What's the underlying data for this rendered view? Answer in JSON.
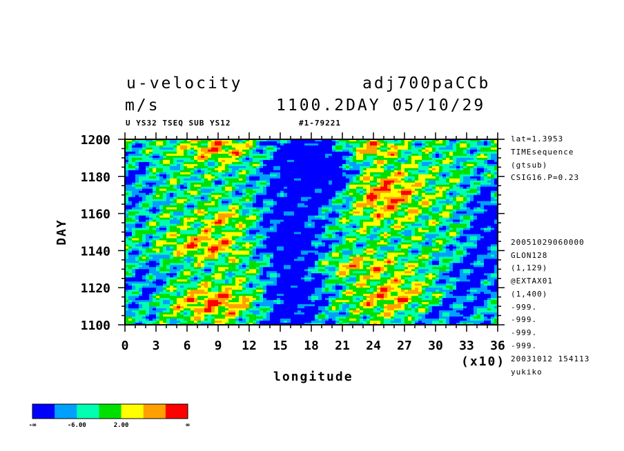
{
  "header": {
    "title_left": "u-velocity",
    "title_right": "adj700paCCb",
    "units": "m/s",
    "subtitle_right": "1100.2DAY 05/10/29",
    "caption_left": "U YS32 TSEQ SUB YS12",
    "caption_right": "#1-79221"
  },
  "side_info": {
    "top": [
      "lat=1.3953",
      "TIMEsequence",
      "(gtsub)",
      "CSIG16.P=0.23"
    ],
    "bottom": [
      "20051029060000",
      "GLON128",
      "(1,129)",
      "@EXTAX01",
      "(1,400)",
      "-999.",
      "-999.",
      "-999.",
      "-999.",
      "20031012 154113",
      "yukiko"
    ]
  },
  "chart_data": {
    "type": "heatmap",
    "title": "u-velocity",
    "xlabel": "longitude",
    "ylabel": "DAY",
    "x_multiplier": "(x10)",
    "xlim": [
      0,
      36
    ],
    "ylim": [
      1100,
      1200
    ],
    "x_ticks": [
      "0",
      "3",
      "6",
      "9",
      "12",
      "15",
      "18",
      "21",
      "24",
      "27",
      "30",
      "33",
      "36"
    ],
    "y_ticks": [
      "1100",
      "1120",
      "1140",
      "1160",
      "1180",
      "1200"
    ],
    "colorbar": {
      "colors": [
        "#0000ff",
        "#00a0ff",
        "#00ffb0",
        "#00e000",
        "#ffff00",
        "#ffa000",
        "#ff0000"
      ],
      "tick_labels": [
        "-∞",
        "-6.00",
        "2.00",
        "∞"
      ]
    }
  }
}
